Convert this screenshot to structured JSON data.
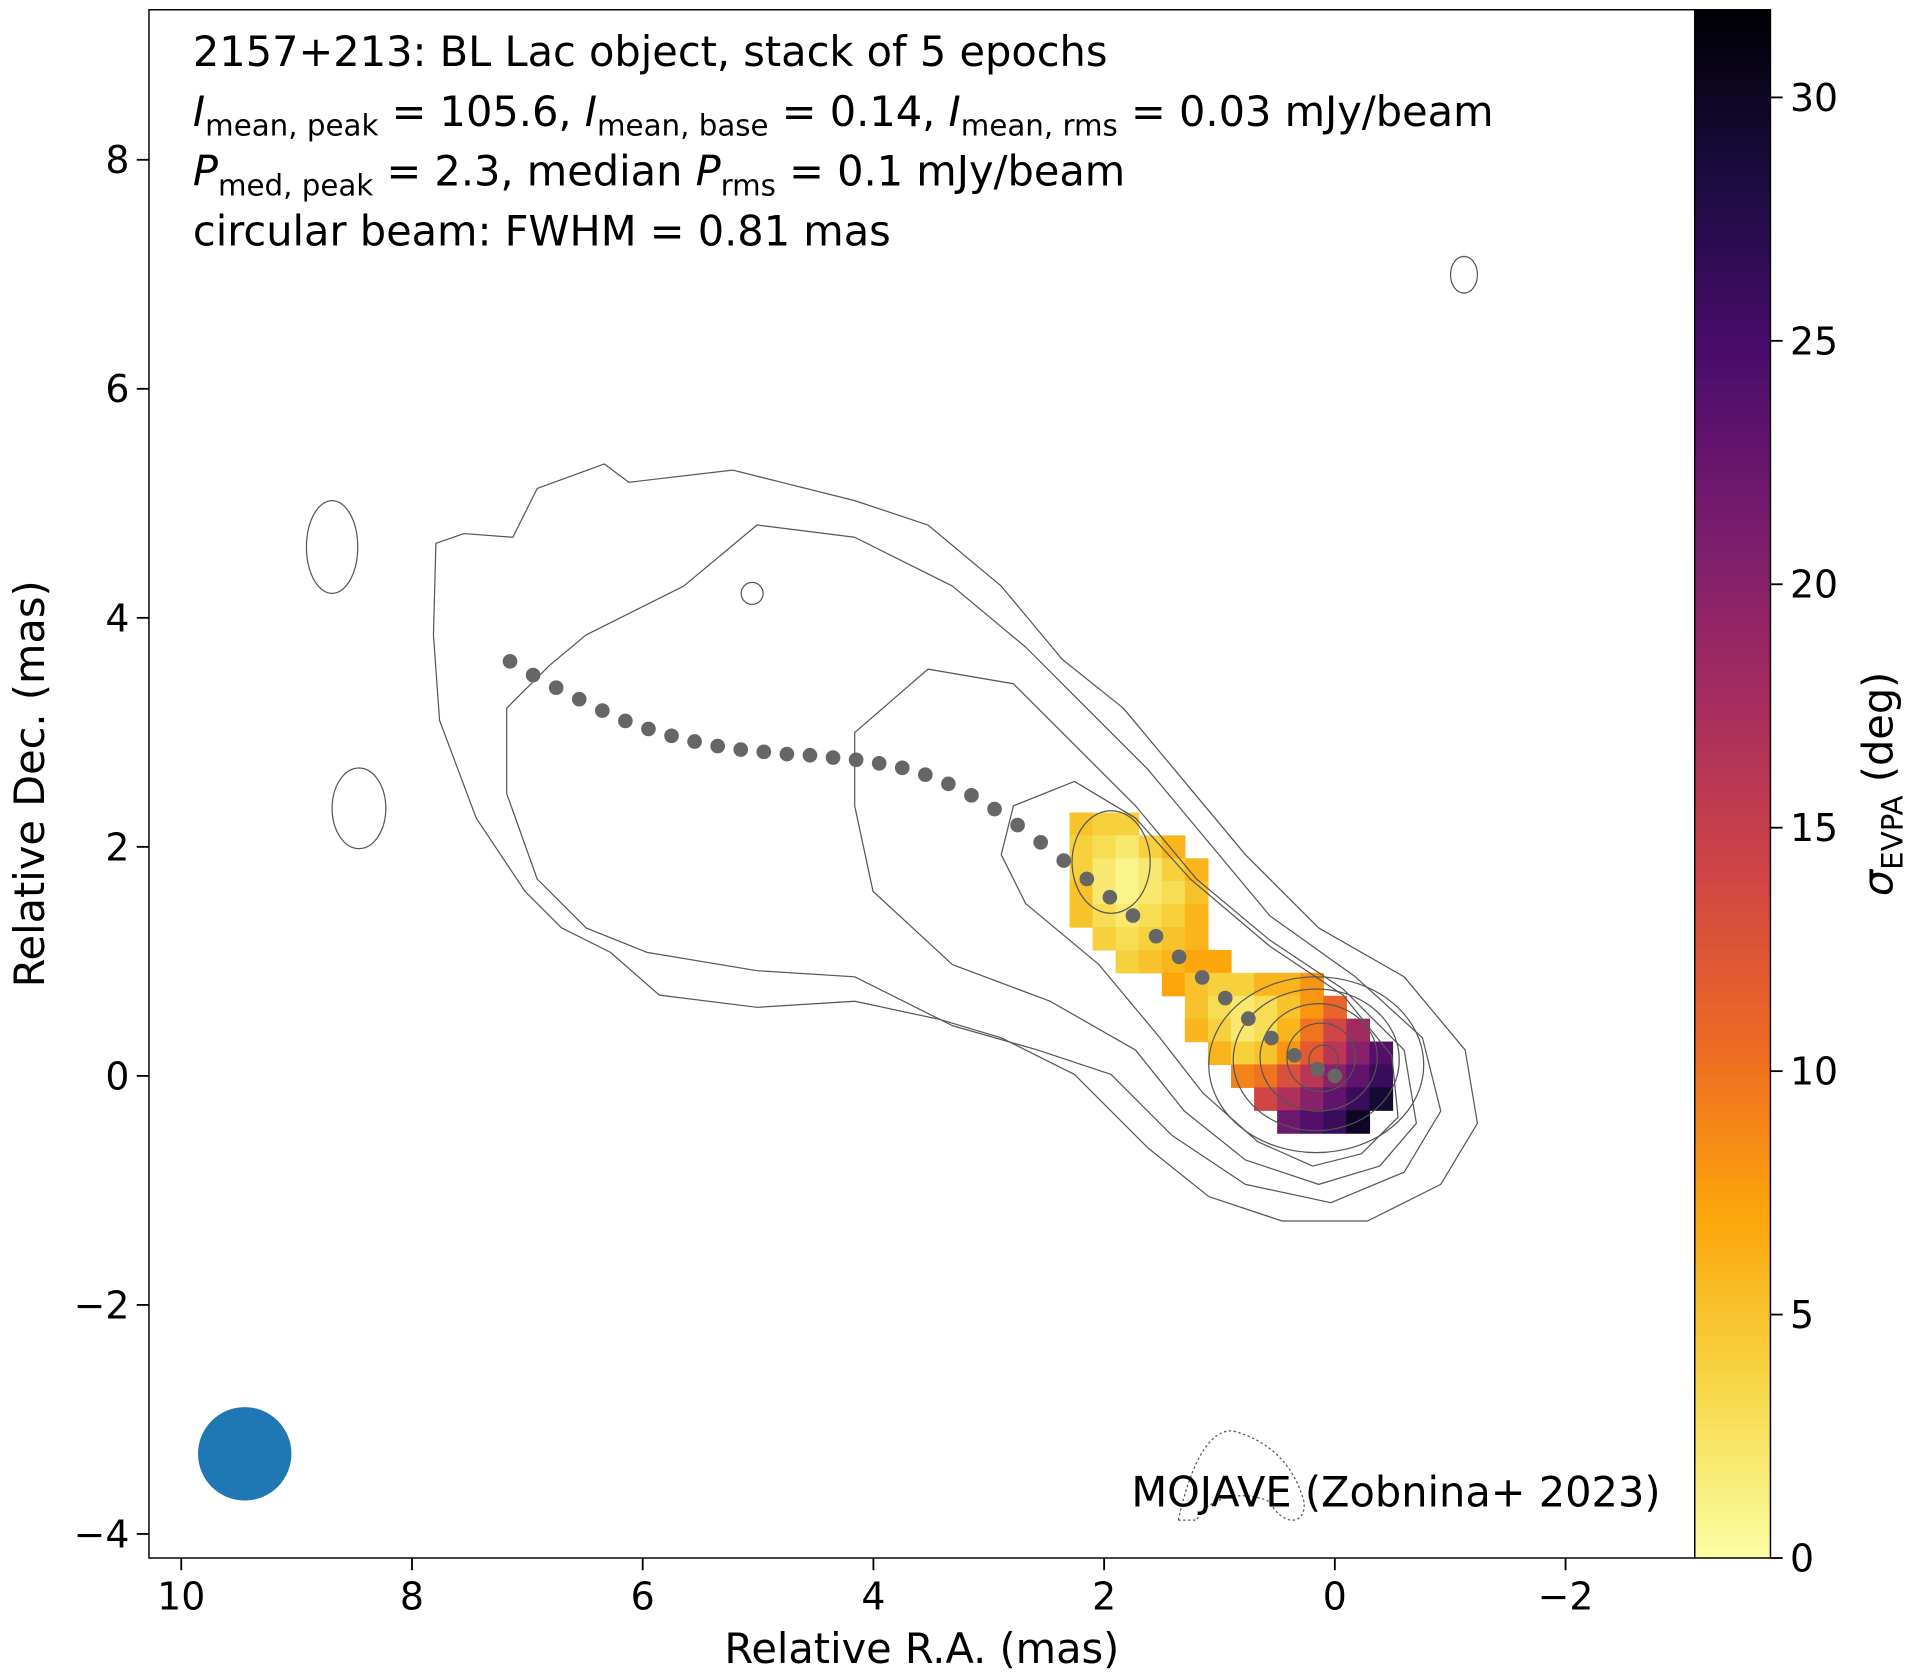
{
  "chart_data": {
    "type": "heatmap",
    "title_lines": [
      [
        {
          "text": "2157+213: BL Lac object, stack of 5 epochs",
          "style": "normal"
        }
      ],
      [
        {
          "text": "I",
          "style": "italic"
        },
        {
          "text": "mean, peak",
          "style": "sub"
        },
        {
          "text": " = 105.6, ",
          "style": "normal"
        },
        {
          "text": "I",
          "style": "italic"
        },
        {
          "text": "mean, base",
          "style": "sub"
        },
        {
          "text": " = 0.14, ",
          "style": "normal"
        },
        {
          "text": "I",
          "style": "italic"
        },
        {
          "text": "mean, rms",
          "style": "sub"
        },
        {
          "text": " = 0.03 mJy/beam",
          "style": "normal"
        }
      ],
      [
        {
          "text": "P",
          "style": "italic"
        },
        {
          "text": "med, peak",
          "style": "sub"
        },
        {
          "text": " = 2.3, median ",
          "style": "normal"
        },
        {
          "text": "P",
          "style": "italic"
        },
        {
          "text": "rms",
          "style": "sub"
        },
        {
          "text": " = 0.1 mJy/beam",
          "style": "normal"
        }
      ],
      [
        {
          "text": "circular beam: FWHM = 0.81 mas",
          "style": "normal"
        }
      ]
    ],
    "annotation": "MOJAVE (Zobnina+ 2023)",
    "xlabel": "Relative R.A. (mas)",
    "ylabel": "Relative Dec. (mas)",
    "colorbar_label": [
      {
        "text": "σ",
        "style": "italic"
      },
      {
        "text": "EVPA",
        "style": "sub"
      },
      {
        "text": " (deg)",
        "style": "normal"
      }
    ],
    "xlim": [
      10.28,
      -3.12
    ],
    "ylim": [
      -4.21,
      9.31
    ],
    "xticks": [
      10,
      8,
      6,
      4,
      2,
      0,
      {
        "value": -2,
        "label": "−2"
      }
    ],
    "yticks": [
      {
        "value": -4,
        "label": "−4"
      },
      {
        "value": -2,
        "label": "−2"
      },
      0,
      2,
      4,
      6,
      8
    ],
    "clim": [
      0,
      31.8
    ],
    "cticks": [
      0,
      5,
      10,
      15,
      20,
      25,
      30
    ],
    "colormap": [
      "#fcffa4",
      "#f6d746",
      "#fca50a",
      "#ed6925",
      "#cf4446",
      "#a52c60",
      "#781c6d",
      "#4a0c6b",
      "#1b0c41",
      "#000004"
    ],
    "heatmap": {
      "x": [
        2.2,
        2.0,
        1.8,
        1.6,
        1.4,
        1.2,
        1.0,
        0.8,
        0.6,
        0.4,
        0.2,
        0.0,
        -0.2,
        -0.4
      ],
      "y": [
        2.2,
        2.0,
        1.8,
        1.6,
        1.4,
        1.2,
        1.0,
        0.8,
        0.6,
        0.4,
        0.2,
        0.0,
        -0.2,
        -0.4
      ],
      "values": [
        [
          5,
          4,
          4,
          null,
          null,
          null,
          null,
          null,
          null,
          null,
          null,
          null,
          null,
          null
        ],
        [
          4,
          3,
          2,
          4,
          6,
          null,
          null,
          null,
          null,
          null,
          null,
          null,
          null,
          null
        ],
        [
          4,
          2,
          1,
          2,
          4,
          6,
          null,
          null,
          null,
          null,
          null,
          null,
          null,
          null
        ],
        [
          5,
          2,
          1,
          2,
          3,
          5,
          null,
          null,
          null,
          null,
          null,
          null,
          null,
          null
        ],
        [
          5,
          3,
          2,
          3,
          4,
          6,
          null,
          null,
          null,
          null,
          null,
          null,
          null,
          null
        ],
        [
          null,
          4,
          3,
          4,
          5,
          6,
          null,
          null,
          null,
          null,
          null,
          null,
          null,
          null
        ],
        [
          null,
          null,
          4,
          5,
          6,
          7,
          7,
          null,
          null,
          null,
          null,
          null,
          null,
          null
        ],
        [
          null,
          null,
          null,
          null,
          7,
          5,
          4,
          4,
          6,
          6,
          8,
          null,
          null,
          null
        ],
        [
          null,
          null,
          null,
          null,
          null,
          5,
          3,
          2,
          3,
          5,
          8,
          11,
          null,
          null
        ],
        [
          null,
          null,
          null,
          null,
          null,
          6,
          4,
          2,
          3,
          6,
          10,
          14,
          18,
          null
        ],
        [
          null,
          null,
          null,
          null,
          null,
          null,
          6,
          4,
          5,
          8,
          12,
          16,
          20,
          24
        ],
        [
          null,
          null,
          null,
          null,
          null,
          null,
          null,
          9,
          10,
          13,
          16,
          20,
          23,
          26
        ],
        [
          null,
          null,
          null,
          null,
          null,
          null,
          null,
          null,
          14,
          17,
          20,
          23,
          26,
          29
        ],
        [
          null,
          null,
          null,
          null,
          null,
          null,
          null,
          null,
          null,
          22,
          24,
          26,
          30,
          null
        ]
      ]
    },
    "ridge": {
      "color": "#666666",
      "x": [
        7.15,
        6.95,
        6.75,
        6.55,
        6.35,
        6.15,
        5.95,
        5.75,
        5.55,
        5.35,
        5.15,
        4.95,
        4.75,
        4.55,
        4.35,
        4.15,
        3.95,
        3.75,
        3.55,
        3.35,
        3.15,
        2.95,
        2.75,
        2.55,
        2.35,
        2.15,
        1.95,
        1.75,
        1.55,
        1.35,
        1.15,
        0.95,
        0.75,
        0.55,
        0.35,
        0.15,
        0
      ],
      "y": [
        3.62,
        3.5,
        3.39,
        3.29,
        3.19,
        3.1,
        3.03,
        2.97,
        2.92,
        2.88,
        2.85,
        2.83,
        2.81,
        2.8,
        2.78,
        2.76,
        2.73,
        2.69,
        2.63,
        2.55,
        2.45,
        2.33,
        2.19,
        2.04,
        1.88,
        1.72,
        1.56,
        1.4,
        1.22,
        1.04,
        0.86,
        0.68,
        0.5,
        0.33,
        0.18,
        0.06,
        0
      ]
    },
    "beam": {
      "x": 9.45,
      "y": -3.3,
      "fwhm": 0.81,
      "color": "#1f77b4"
    }
  }
}
